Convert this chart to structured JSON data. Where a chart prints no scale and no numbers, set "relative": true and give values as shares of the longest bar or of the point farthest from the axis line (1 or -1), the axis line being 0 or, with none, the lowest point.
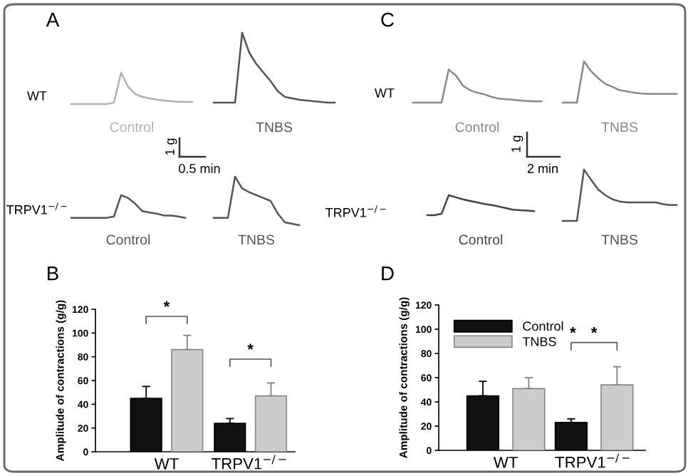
{
  "chart_data": [
    {
      "type": "line",
      "relative": true,
      "title": "A",
      "ylabel": "WT",
      "annotations": [
        "1 g",
        "0.5 min"
      ],
      "categories": [
        null,
        null,
        null,
        null,
        null,
        null,
        null,
        null,
        null,
        null,
        null,
        null,
        null,
        null,
        null,
        null,
        null,
        null,
        null,
        null,
        null,
        null,
        null,
        null,
        null,
        null,
        null,
        null,
        null,
        null,
        null,
        null,
        null,
        null,
        null,
        null,
        null,
        null
      ],
      "series": [
        {
          "name": "Control",
          "color": "#b0b0b0",
          "values": [
            0,
            0,
            0,
            0,
            0,
            0,
            0.02,
            0.44,
            0.24,
            0.14,
            0.1,
            0.08,
            0.06,
            0.05,
            0.04,
            0.03,
            0.03,
            0.03,
            null,
            null,
            null,
            null,
            null,
            null,
            null,
            null,
            null,
            null,
            null,
            null,
            null,
            null,
            null,
            null,
            null,
            null,
            null,
            null
          ]
        },
        {
          "name": "TNBS",
          "color": "#555555",
          "values": [
            null,
            null,
            null,
            null,
            null,
            null,
            null,
            null,
            null,
            null,
            null,
            null,
            null,
            null,
            null,
            null,
            null,
            null,
            null,
            null,
            0.02,
            0.02,
            0.02,
            0.02,
            1.0,
            0.72,
            0.56,
            0.44,
            0.32,
            0.18,
            0.1,
            0.08,
            0.06,
            0.05,
            0.04,
            0.03,
            0.02,
            0.02
          ]
        }
      ]
    },
    {
      "type": "line",
      "relative": true,
      "ylabel": "TRPV1$^{−/−}$",
      "categories": [
        null,
        null,
        null,
        null,
        null,
        null,
        null,
        null,
        null,
        null,
        null,
        null,
        null,
        null,
        null,
        null,
        null,
        null,
        null,
        null,
        null,
        null,
        null,
        null,
        null,
        null,
        null,
        null,
        null,
        null,
        null,
        null,
        null,
        null,
        null,
        null,
        null,
        null
      ],
      "series": [
        {
          "name": "Control",
          "color": "#555555",
          "values": [
            0.15,
            0.15,
            0.15,
            0.15,
            0.15,
            0.15,
            0.18,
            0.62,
            0.56,
            0.44,
            0.29,
            0.26,
            0.24,
            0.2,
            0.2,
            0.18,
            0.15,
            null,
            null,
            null,
            null,
            null,
            null,
            null,
            null,
            null,
            null,
            null,
            null,
            null,
            null,
            null,
            null,
            null,
            null,
            null,
            null,
            null
          ]
        },
        {
          "name": "TNBS",
          "color": "#555555",
          "values": [
            null,
            null,
            null,
            null,
            null,
            null,
            null,
            null,
            null,
            null,
            null,
            null,
            null,
            null,
            null,
            null,
            null,
            null,
            null,
            null,
            0.15,
            0.15,
            0.15,
            1.0,
            0.76,
            0.68,
            0.62,
            0.56,
            0.5,
            0.24,
            0.06,
            0.03,
            0.0,
            null,
            null,
            null,
            null,
            null
          ]
        }
      ]
    },
    {
      "type": "line",
      "relative": true,
      "title": "C",
      "ylabel": "WT",
      "annotations": [
        "1 g",
        "2 min"
      ],
      "categories": [
        null,
        null,
        null,
        null,
        null,
        null,
        null,
        null,
        null,
        null,
        null,
        null,
        null,
        null,
        null,
        null,
        null,
        null,
        null,
        null,
        null,
        null,
        null,
        null,
        null,
        null,
        null,
        null,
        null,
        null,
        null,
        null,
        null,
        null,
        null,
        null,
        null,
        null
      ],
      "series": [
        {
          "name": "Control",
          "color": "#888888",
          "values": [
            0,
            0,
            0,
            0,
            0,
            0.8,
            0.66,
            0.41,
            0.3,
            0.24,
            0.2,
            0.14,
            0.1,
            0.08,
            0.07,
            0.05,
            0.04,
            0.03,
            0.03,
            null,
            null,
            null,
            null,
            null,
            null,
            null,
            null,
            null,
            null,
            null,
            null,
            null,
            null,
            null,
            null,
            null,
            null,
            null
          ]
        },
        {
          "name": "TNBS",
          "color": "#888888",
          "values": [
            null,
            null,
            null,
            null,
            null,
            null,
            null,
            null,
            null,
            null,
            null,
            null,
            null,
            null,
            null,
            null,
            null,
            null,
            null,
            null,
            null,
            0,
            0,
            0,
            1.0,
            0.76,
            0.59,
            0.45,
            0.38,
            0.3,
            0.27,
            0.24,
            0.22,
            0.21,
            0.21,
            0.21,
            0.21,
            0.21
          ]
        }
      ]
    },
    {
      "type": "line",
      "relative": true,
      "ylabel": "TRPV1$^{−/−}$",
      "categories": [
        null,
        null,
        null,
        null,
        null,
        null,
        null,
        null,
        null,
        null,
        null,
        null,
        null,
        null,
        null,
        null,
        null,
        null,
        null,
        null,
        null,
        null,
        null,
        null,
        null,
        null,
        null,
        null,
        null,
        null,
        null,
        null,
        null,
        null,
        null,
        null,
        null,
        null
      ],
      "series": [
        {
          "name": "Control",
          "color": "#444444",
          "values": [
            null,
            null,
            0.11,
            0.11,
            0.14,
            0.5,
            0.46,
            0.42,
            0.39,
            0.36,
            0.33,
            0.31,
            0.28,
            0.25,
            0.22,
            0.21,
            0.2,
            0.19,
            null,
            null,
            null,
            null,
            null,
            null,
            null,
            null,
            null,
            null,
            null,
            null,
            null,
            null,
            null,
            null,
            null,
            null,
            null,
            null
          ]
        },
        {
          "name": "TNBS",
          "color": "#555555",
          "values": [
            null,
            null,
            null,
            null,
            null,
            null,
            null,
            null,
            null,
            null,
            null,
            null,
            null,
            null,
            null,
            null,
            null,
            null,
            null,
            null,
            null,
            0,
            0,
            0,
            1.0,
            0.8,
            0.61,
            0.5,
            0.42,
            0.38,
            0.36,
            0.36,
            0.36,
            0.36,
            0.36,
            0.33,
            0.31,
            0.31
          ]
        }
      ]
    },
    {
      "type": "bar",
      "title": "B",
      "ylabel": "Amplitude of contractions (g/g)",
      "categories": [
        "WT",
        "TRPV1$^{−/−}$"
      ],
      "ylim": [
        0,
        120
      ],
      "yticks": [
        0,
        20,
        40,
        60,
        80,
        100,
        120
      ],
      "annotations": [
        "*",
        "*"
      ],
      "series": [
        {
          "color": "#111111",
          "values": [
            45,
            24
          ],
          "errors": [
            [
              45,
              55
            ],
            [
              24,
              28
            ]
          ]
        },
        {
          "color": "#cccccc",
          "values": [
            86,
            47
          ],
          "errors": [
            [
              86,
              98
            ],
            [
              47,
              58
            ]
          ]
        }
      ]
    },
    {
      "type": "bar",
      "title": "D",
      "ylabel": "Amplitude of contractions (g/g)",
      "categories": [
        "WT",
        "TRPV1$^{−/−}$"
      ],
      "ylim": [
        0,
        120
      ],
      "yticks": [
        0,
        20,
        40,
        60,
        80,
        100,
        120
      ],
      "legend": "top left",
      "annotations": [
        "*",
        "*"
      ],
      "series": [
        {
          "name": "Control",
          "color": "#111111",
          "values": [
            45,
            23
          ],
          "errors": [
            [
              45,
              57
            ],
            [
              23,
              26
            ]
          ]
        },
        {
          "name": "TNBS",
          "color": "#cccccc",
          "values": [
            51,
            54
          ],
          "errors": [
            [
              51,
              60
            ],
            [
              54,
              69
            ]
          ]
        }
      ]
    }
  ]
}
